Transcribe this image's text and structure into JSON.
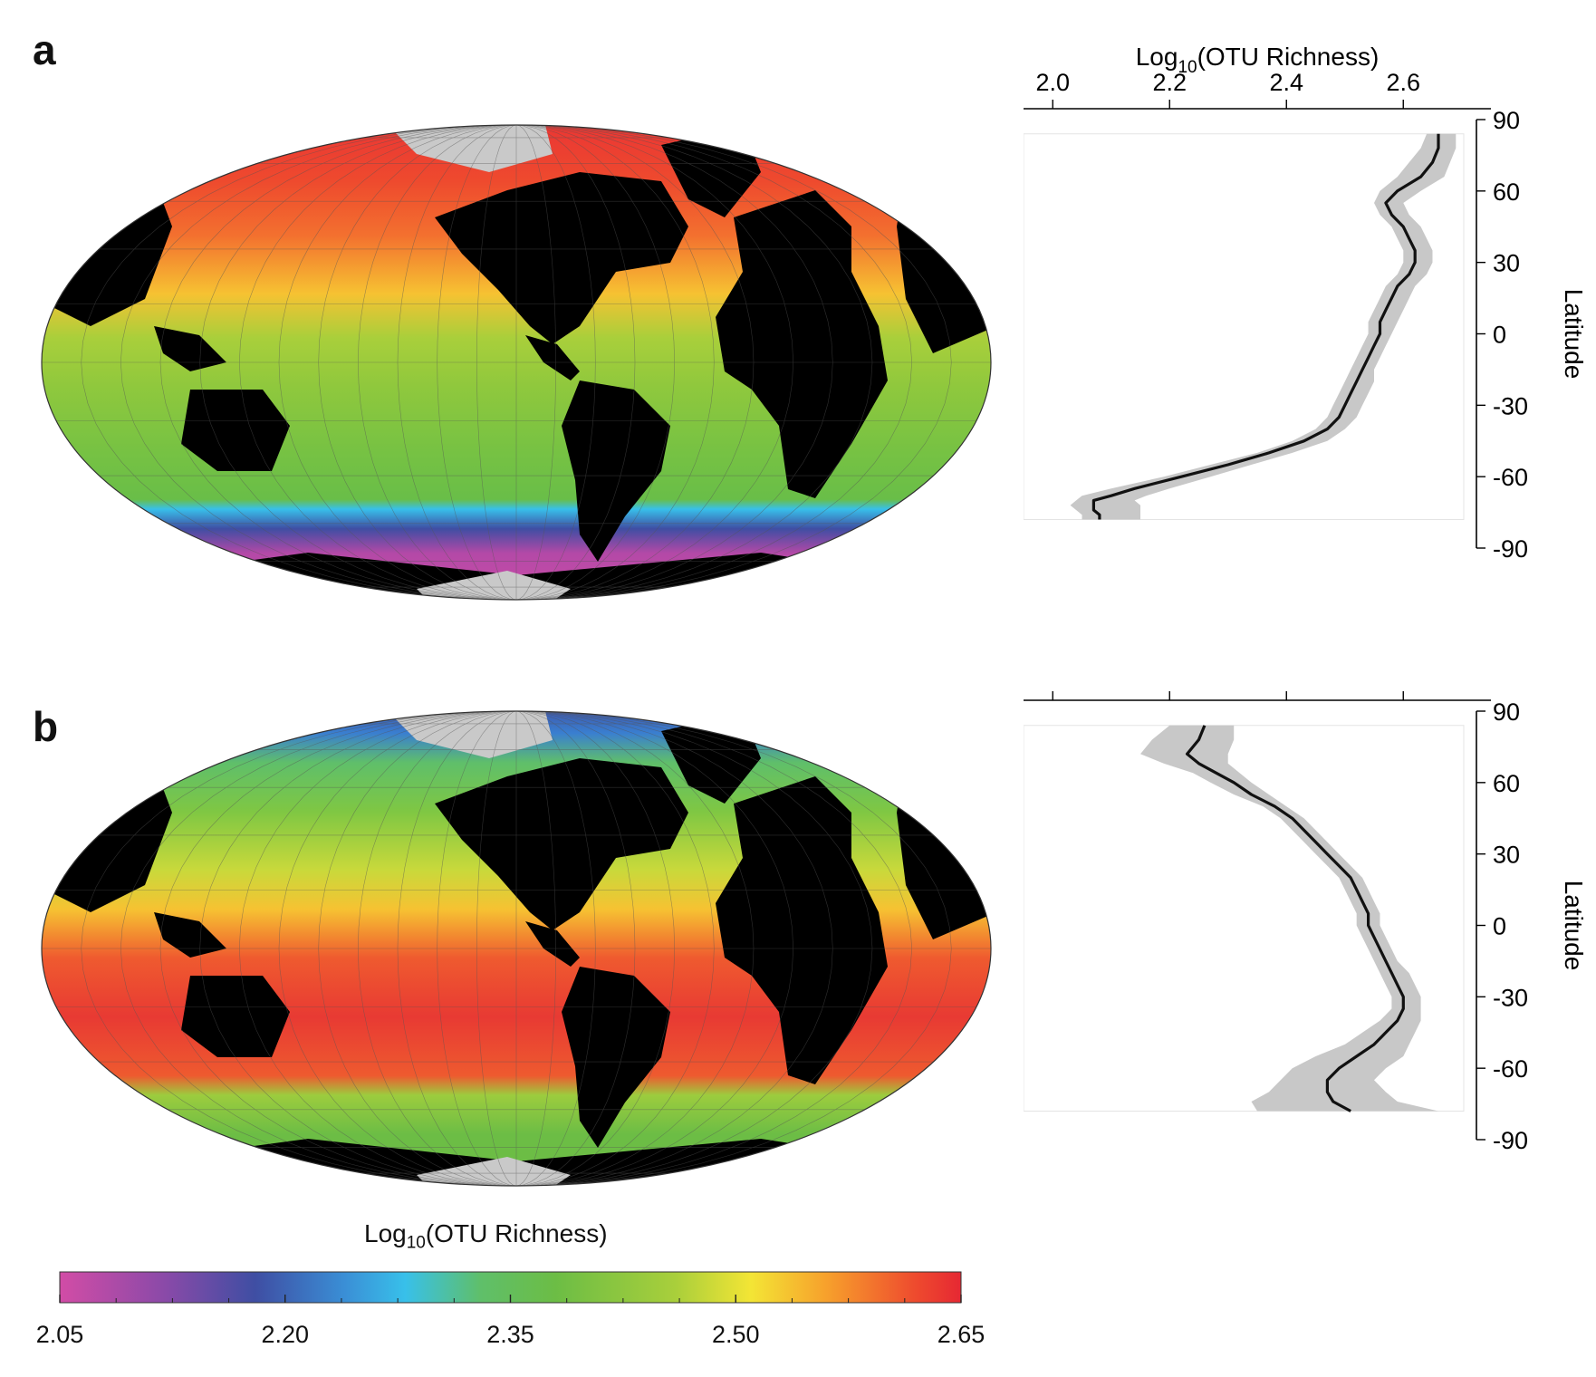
{
  "panels": [
    {
      "letter": "a"
    },
    {
      "letter": "b"
    }
  ],
  "colorbar": {
    "title_main": "Log",
    "title_sub": "10",
    "title_rest": "(OTU Richness)",
    "ticks": [
      "2.05",
      "2.20",
      "2.35",
      "2.50",
      "2.65"
    ],
    "tick_values": [
      2.05,
      2.2,
      2.35,
      2.5,
      2.65
    ],
    "range": [
      2.05,
      2.65
    ],
    "stops": [
      {
        "v": 2.05,
        "color": "#d24ca6"
      },
      {
        "v": 2.12,
        "color": "#8a4aa8"
      },
      {
        "v": 2.18,
        "color": "#3f4ea3"
      },
      {
        "v": 2.24,
        "color": "#3a8fd6"
      },
      {
        "v": 2.28,
        "color": "#38c0ea"
      },
      {
        "v": 2.33,
        "color": "#5fbf6a"
      },
      {
        "v": 2.38,
        "color": "#6cbd45"
      },
      {
        "v": 2.46,
        "color": "#a9cf3b"
      },
      {
        "v": 2.51,
        "color": "#f3e535"
      },
      {
        "v": 2.56,
        "color": "#f7a12c"
      },
      {
        "v": 2.62,
        "color": "#ee4a2e"
      },
      {
        "v": 2.65,
        "color": "#e62833"
      }
    ]
  },
  "map_style": {
    "land_color": "#000000",
    "ice_color": "#c9c9c9"
  },
  "chart_data": [
    {
      "type": "line",
      "panel": "a",
      "xlabel_main": "Log",
      "xlabel_sub": "10",
      "xlabel_rest": "(OTU Richness)",
      "ylabel": "Latitude",
      "xlim": [
        1.95,
        2.75
      ],
      "ylim": [
        -90,
        90
      ],
      "x_ticks": [
        2.0,
        2.2,
        2.4,
        2.6
      ],
      "x_tick_labels": [
        "2.0",
        "2.2",
        "2.4",
        "2.6"
      ],
      "y_ticks": [
        90,
        60,
        30,
        0,
        -30,
        -60,
        -90
      ],
      "y_tick_labels": [
        "90",
        "60",
        "30",
        "0",
        "-30",
        "-60",
        "-90"
      ],
      "lat": [
        84,
        78,
        72,
        66,
        60,
        55,
        50,
        45,
        40,
        35,
        30,
        25,
        20,
        15,
        10,
        5,
        0,
        -5,
        -10,
        -15,
        -20,
        -25,
        -30,
        -35,
        -40,
        -45,
        -50,
        -55,
        -60,
        -65,
        -68,
        -70,
        -72,
        -74,
        -76,
        -78
      ],
      "mean": [
        2.66,
        2.66,
        2.65,
        2.63,
        2.59,
        2.57,
        2.58,
        2.6,
        2.61,
        2.62,
        2.62,
        2.61,
        2.59,
        2.58,
        2.57,
        2.56,
        2.56,
        2.55,
        2.54,
        2.53,
        2.52,
        2.51,
        2.5,
        2.49,
        2.47,
        2.43,
        2.37,
        2.3,
        2.22,
        2.14,
        2.1,
        2.07,
        2.07,
        2.07,
        2.08,
        2.08
      ],
      "lower": [
        2.64,
        2.63,
        2.61,
        2.59,
        2.56,
        2.55,
        2.56,
        2.58,
        2.59,
        2.6,
        2.6,
        2.59,
        2.57,
        2.56,
        2.55,
        2.54,
        2.54,
        2.53,
        2.52,
        2.51,
        2.5,
        2.49,
        2.48,
        2.47,
        2.45,
        2.41,
        2.35,
        2.27,
        2.19,
        2.1,
        2.05,
        2.04,
        2.03,
        2.04,
        2.05,
        2.05
      ],
      "upper": [
        2.69,
        2.69,
        2.68,
        2.67,
        2.63,
        2.6,
        2.61,
        2.63,
        2.64,
        2.65,
        2.65,
        2.64,
        2.62,
        2.61,
        2.6,
        2.59,
        2.58,
        2.57,
        2.56,
        2.55,
        2.55,
        2.54,
        2.53,
        2.52,
        2.5,
        2.47,
        2.41,
        2.34,
        2.27,
        2.2,
        2.16,
        2.14,
        2.15,
        2.15,
        2.15,
        2.15
      ]
    },
    {
      "type": "line",
      "panel": "b",
      "ylabel": "Latitude",
      "xlim": [
        1.95,
        2.75
      ],
      "ylim": [
        -90,
        90
      ],
      "x_ticks": [
        2.0,
        2.2,
        2.4,
        2.6
      ],
      "y_ticks": [
        90,
        60,
        30,
        0,
        -30,
        -60,
        -90
      ],
      "y_tick_labels": [
        "90",
        "60",
        "30",
        "0",
        "-30",
        "-60",
        "-90"
      ],
      "lat": [
        84,
        78,
        72,
        68,
        64,
        60,
        55,
        50,
        45,
        40,
        35,
        30,
        25,
        20,
        15,
        10,
        5,
        0,
        -5,
        -10,
        -15,
        -20,
        -25,
        -30,
        -35,
        -40,
        -45,
        -50,
        -55,
        -60,
        -65,
        -70,
        -74,
        -78
      ],
      "mean": [
        2.26,
        2.25,
        2.23,
        2.25,
        2.28,
        2.31,
        2.34,
        2.38,
        2.41,
        2.43,
        2.45,
        2.47,
        2.49,
        2.51,
        2.52,
        2.53,
        2.54,
        2.54,
        2.55,
        2.56,
        2.57,
        2.58,
        2.59,
        2.6,
        2.6,
        2.59,
        2.57,
        2.55,
        2.52,
        2.49,
        2.47,
        2.47,
        2.48,
        2.51
      ],
      "lower": [
        2.2,
        2.17,
        2.15,
        2.19,
        2.24,
        2.27,
        2.31,
        2.36,
        2.39,
        2.41,
        2.43,
        2.45,
        2.47,
        2.49,
        2.5,
        2.51,
        2.52,
        2.52,
        2.53,
        2.54,
        2.55,
        2.56,
        2.57,
        2.58,
        2.58,
        2.56,
        2.53,
        2.5,
        2.45,
        2.41,
        2.39,
        2.37,
        2.34,
        2.35
      ],
      "upper": [
        2.31,
        2.31,
        2.3,
        2.3,
        2.32,
        2.34,
        2.37,
        2.4,
        2.43,
        2.45,
        2.47,
        2.49,
        2.51,
        2.53,
        2.54,
        2.55,
        2.56,
        2.56,
        2.57,
        2.58,
        2.59,
        2.61,
        2.62,
        2.63,
        2.63,
        2.63,
        2.62,
        2.61,
        2.6,
        2.57,
        2.55,
        2.57,
        2.59,
        2.66
      ]
    }
  ]
}
